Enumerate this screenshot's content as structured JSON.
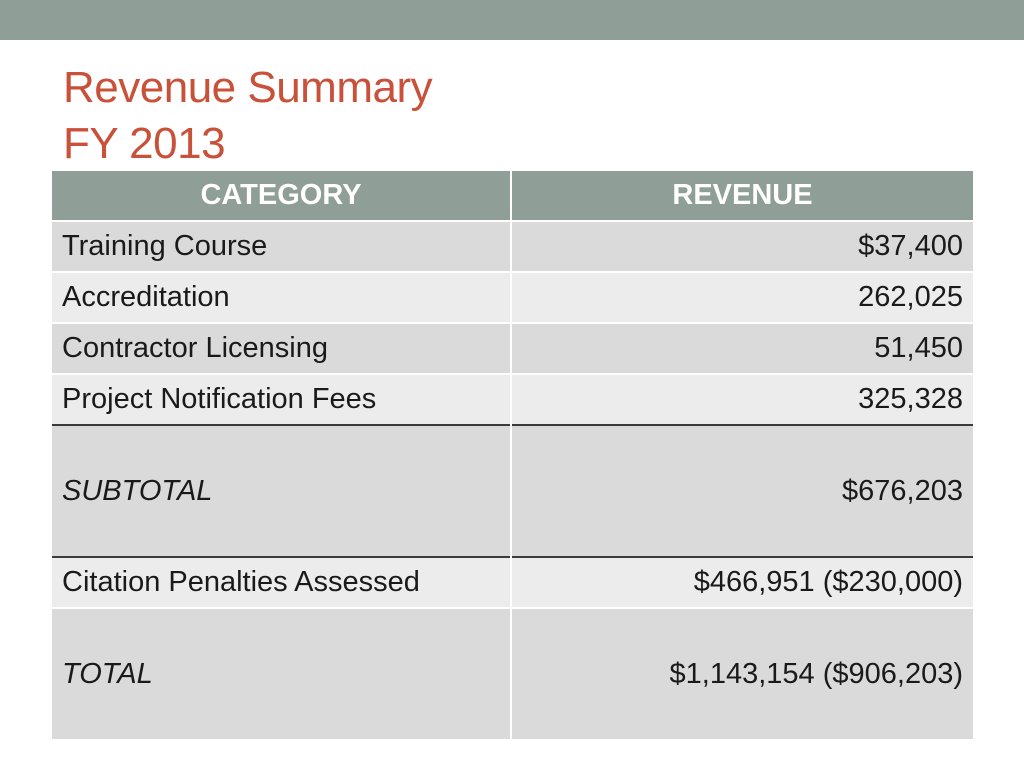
{
  "title": {
    "line1": "Revenue Summary",
    "line2": "FY 2013"
  },
  "colors": {
    "accent_bar": "#8f9e96",
    "title": "#c9513a",
    "row_dark": "#d9dad9",
    "row_light": "#ebeceb"
  },
  "table": {
    "headers": [
      "CATEGORY",
      "REVENUE"
    ],
    "rows": [
      {
        "category": "Training Course",
        "revenue": "$37,400"
      },
      {
        "category": "Accreditation",
        "revenue": "262,025"
      },
      {
        "category": "Contractor Licensing",
        "revenue": "51,450"
      },
      {
        "category": "Project Notification Fees",
        "revenue": "325,328"
      },
      {
        "category": "SUBTOTAL",
        "revenue": "$676,203"
      },
      {
        "category": "Citation Penalties Assessed",
        "revenue": "$466,951 ($230,000)"
      },
      {
        "category": "TOTAL",
        "revenue": "$1,143,154 ($906,203)"
      }
    ]
  }
}
